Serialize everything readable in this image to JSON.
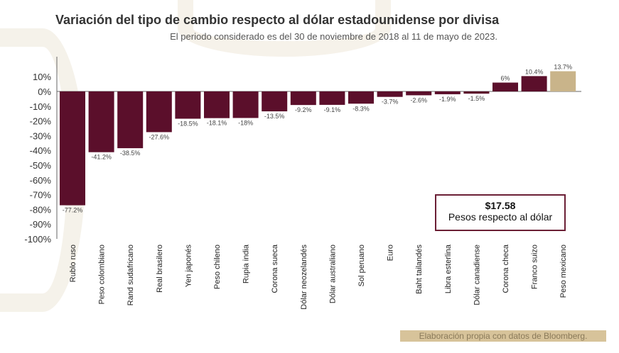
{
  "chart_data": {
    "type": "bar",
    "title": "Variación del tipo de cambio respecto al dólar estadounidense por divisa",
    "subtitle": "El periodo considerado es del 30 de noviembre de 2018 al 11 de mayo de 2023.",
    "categories": [
      "Rublo ruso",
      "Peso colombiano",
      "Rand sudafricano",
      "Real brasilero",
      "Yen japonés",
      "Peso chileno",
      "Rupia india",
      "Corona sueca",
      "Dólar neozelandés",
      "Dólar australiano",
      "Sol peruano",
      "Euro",
      "Baht tailandés",
      "Libra esterlina",
      "Dólar canadiense",
      "Corona checa",
      "Franco suizo",
      "Peso mexicano"
    ],
    "values": [
      -77.2,
      -41.2,
      -38.5,
      -27.6,
      -18.5,
      -18.1,
      -18,
      -13.5,
      -9.2,
      -9.1,
      -8.3,
      -3.7,
      -2.6,
      -1.9,
      -1.5,
      6,
      10.4,
      13.7
    ],
    "labels": [
      "-77.2%",
      "-41.2%",
      "-38.5%",
      "-27.6%",
      "-18.5%",
      "-18.1%",
      "-18%",
      "-13.5%",
      "-9.2%",
      "-9.1%",
      "-8.3%",
      "-3.7%",
      "-2.6%",
      "-1.9%",
      "-1.5%",
      "6%",
      "10.4%",
      "13.7%"
    ],
    "ylim": [
      -100,
      10
    ],
    "yticks": [
      "10%",
      "0%",
      "-10%",
      "-20%",
      "-30%",
      "-40%",
      "-50%",
      "-60%",
      "-70%",
      "-80%",
      "-90%",
      "-100%"
    ],
    "ytick_values": [
      10,
      0,
      -10,
      -20,
      -30,
      -40,
      -50,
      -60,
      -70,
      -80,
      -90,
      -100
    ],
    "colors": {
      "default": "#5b0f2b",
      "highlight": "#c9b48a"
    },
    "highlight_index": 17
  },
  "callout": {
    "value": "$17.58",
    "label": "Pesos respecto al dólar"
  },
  "source": "Elaboración propia con datos de Bloomberg."
}
